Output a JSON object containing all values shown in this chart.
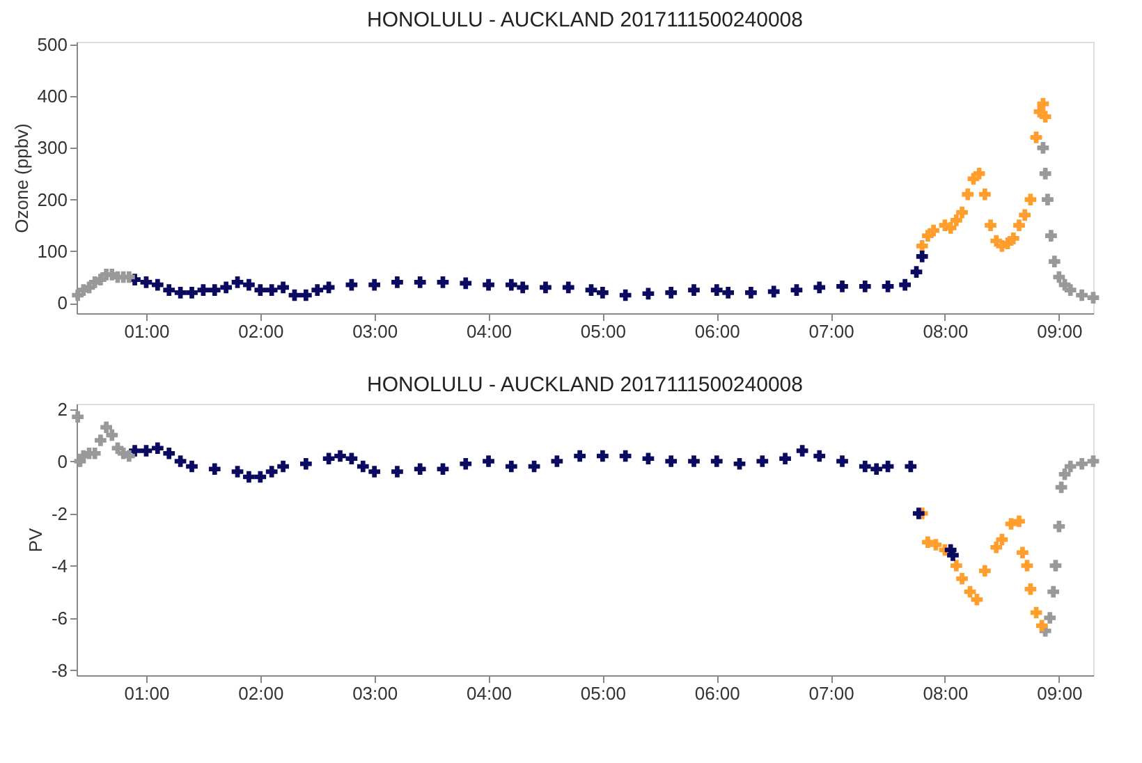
{
  "chart_data": [
    {
      "type": "scatter",
      "title": "HONOLULU - AUCKLAND 2017111500240008",
      "ylabel": "Ozone (ppbv)",
      "marker": "cross",
      "grid": false,
      "xlim": [
        0.39,
        9.3
      ],
      "xticks": [
        {
          "value": 1,
          "label": "01:00"
        },
        {
          "value": 2,
          "label": "02:00"
        },
        {
          "value": 3,
          "label": "03:00"
        },
        {
          "value": 4,
          "label": "04:00"
        },
        {
          "value": 5,
          "label": "05:00"
        },
        {
          "value": 6,
          "label": "06:00"
        },
        {
          "value": 7,
          "label": "07:00"
        },
        {
          "value": 8,
          "label": "08:00"
        },
        {
          "value": 9,
          "label": "09:00"
        }
      ],
      "ylim": [
        -20,
        505
      ],
      "yticks": [
        0,
        100,
        200,
        300,
        400,
        500
      ],
      "series": [
        {
          "color": "#999999",
          "x": [
            0.4,
            0.45,
            0.5,
            0.55,
            0.6,
            0.65,
            0.7,
            0.75,
            0.8,
            0.85
          ],
          "values": [
            15,
            25,
            30,
            40,
            45,
            55,
            55,
            50,
            50,
            50
          ]
        },
        {
          "color": "#0a0a60",
          "x": [
            0.9,
            1.0,
            1.1,
            1.2,
            1.3,
            1.4,
            1.5,
            1.6,
            1.7,
            1.8,
            1.9,
            2.0,
            2.1,
            2.2,
            2.3,
            2.4,
            2.5,
            2.6,
            2.8,
            3.0,
            3.2,
            3.4,
            3.6,
            3.8,
            4.0,
            4.2,
            4.3,
            4.5,
            4.7,
            4.9,
            5.0,
            5.2,
            5.4,
            5.6,
            5.8,
            6.0,
            6.1,
            6.3,
            6.5,
            6.7,
            6.9,
            7.1,
            7.3,
            7.5,
            7.65,
            7.75,
            7.8
          ],
          "values": [
            45,
            40,
            35,
            25,
            20,
            20,
            25,
            25,
            30,
            40,
            35,
            25,
            25,
            30,
            15,
            15,
            25,
            30,
            35,
            35,
            40,
            40,
            40,
            38,
            35,
            35,
            30,
            30,
            30,
            25,
            20,
            15,
            18,
            20,
            25,
            25,
            20,
            20,
            22,
            25,
            30,
            32,
            32,
            32,
            35,
            60,
            90
          ]
        },
        {
          "color": "#ff9e2c",
          "x": [
            7.8,
            7.85,
            7.9,
            8.0,
            8.05,
            8.1,
            8.15,
            8.2,
            8.25,
            8.3,
            8.35,
            8.4,
            8.45,
            8.5,
            8.55,
            8.6,
            8.65,
            8.7,
            8.75,
            8.8,
            8.83,
            8.86,
            8.88
          ],
          "values": [
            110,
            130,
            140,
            150,
            145,
            160,
            175,
            210,
            240,
            250,
            210,
            150,
            120,
            110,
            115,
            125,
            150,
            170,
            200,
            320,
            370,
            385,
            360
          ]
        },
        {
          "color": "#999999",
          "x": [
            8.86,
            8.88,
            8.9,
            8.93,
            8.96,
            9.0,
            9.05,
            9.1,
            9.2,
            9.3
          ],
          "values": [
            300,
            250,
            200,
            130,
            80,
            50,
            35,
            25,
            15,
            10
          ]
        }
      ]
    },
    {
      "type": "scatter",
      "title": "HONOLULU - AUCKLAND 2017111500240008",
      "ylabel": "PV",
      "marker": "cross",
      "grid": false,
      "xlim": [
        0.39,
        9.3
      ],
      "xticks": [
        {
          "value": 1,
          "label": "01:00"
        },
        {
          "value": 2,
          "label": "02:00"
        },
        {
          "value": 3,
          "label": "03:00"
        },
        {
          "value": 4,
          "label": "04:00"
        },
        {
          "value": 5,
          "label": "05:00"
        },
        {
          "value": 6,
          "label": "06:00"
        },
        {
          "value": 7,
          "label": "07:00"
        },
        {
          "value": 8,
          "label": "08:00"
        },
        {
          "value": 9,
          "label": "09:00"
        }
      ],
      "ylim": [
        -8.2,
        2.2
      ],
      "yticks": [
        -8,
        -6,
        -4,
        -2,
        0,
        2
      ],
      "series": [
        {
          "color": "#999999",
          "x": [
            0.4,
            0.42,
            0.45,
            0.5,
            0.55,
            0.6,
            0.65,
            0.7,
            0.75,
            0.8,
            0.85
          ],
          "values": [
            1.7,
            0.0,
            0.2,
            0.3,
            0.3,
            0.8,
            1.3,
            1.0,
            0.5,
            0.3,
            0.2
          ]
        },
        {
          "color": "#0a0a60",
          "x": [
            0.9,
            1.0,
            1.1,
            1.2,
            1.3,
            1.4,
            1.6,
            1.8,
            1.9,
            2.0,
            2.1,
            2.2,
            2.4,
            2.6,
            2.7,
            2.8,
            2.9,
            3.0,
            3.2,
            3.4,
            3.6,
            3.8,
            4.0,
            4.2,
            4.4,
            4.6,
            4.8,
            5.0,
            5.2,
            5.4,
            5.6,
            5.8,
            6.0,
            6.2,
            6.4,
            6.6,
            6.75,
            6.9,
            7.1,
            7.3,
            7.4,
            7.5,
            7.7,
            7.77,
            8.05,
            8.07
          ],
          "values": [
            0.4,
            0.4,
            0.5,
            0.3,
            0.0,
            -0.2,
            -0.3,
            -0.4,
            -0.6,
            -0.6,
            -0.4,
            -0.2,
            -0.1,
            0.1,
            0.2,
            0.1,
            -0.2,
            -0.4,
            -0.4,
            -0.3,
            -0.3,
            -0.1,
            0.0,
            -0.2,
            -0.2,
            0.0,
            0.2,
            0.2,
            0.2,
            0.1,
            0.0,
            0.0,
            0.0,
            -0.1,
            0.0,
            0.1,
            0.4,
            0.2,
            0.0,
            -0.2,
            -0.3,
            -0.2,
            -0.2,
            -2.0,
            -3.4,
            -3.6
          ]
        },
        {
          "color": "#ff9e2c",
          "x": [
            7.8,
            7.85,
            7.92,
            8.0,
            8.1,
            8.15,
            8.22,
            8.28,
            8.35,
            8.45,
            8.5,
            8.58,
            8.65,
            8.68,
            8.72,
            8.75,
            8.8,
            8.85
          ],
          "values": [
            -2.0,
            -3.1,
            -3.2,
            -3.4,
            -4.0,
            -4.5,
            -5.0,
            -5.3,
            -4.2,
            -3.3,
            -3.0,
            -2.4,
            -2.3,
            -3.5,
            -4.0,
            -4.9,
            -5.8,
            -6.3
          ]
        },
        {
          "color": "#999999",
          "x": [
            8.88,
            8.92,
            8.95,
            8.97,
            9.0,
            9.02,
            9.05,
            9.1,
            9.2,
            9.3
          ],
          "values": [
            -6.5,
            -6.0,
            -5.0,
            -4.0,
            -2.5,
            -1.0,
            -0.5,
            -0.2,
            -0.1,
            0.0
          ]
        }
      ]
    }
  ]
}
